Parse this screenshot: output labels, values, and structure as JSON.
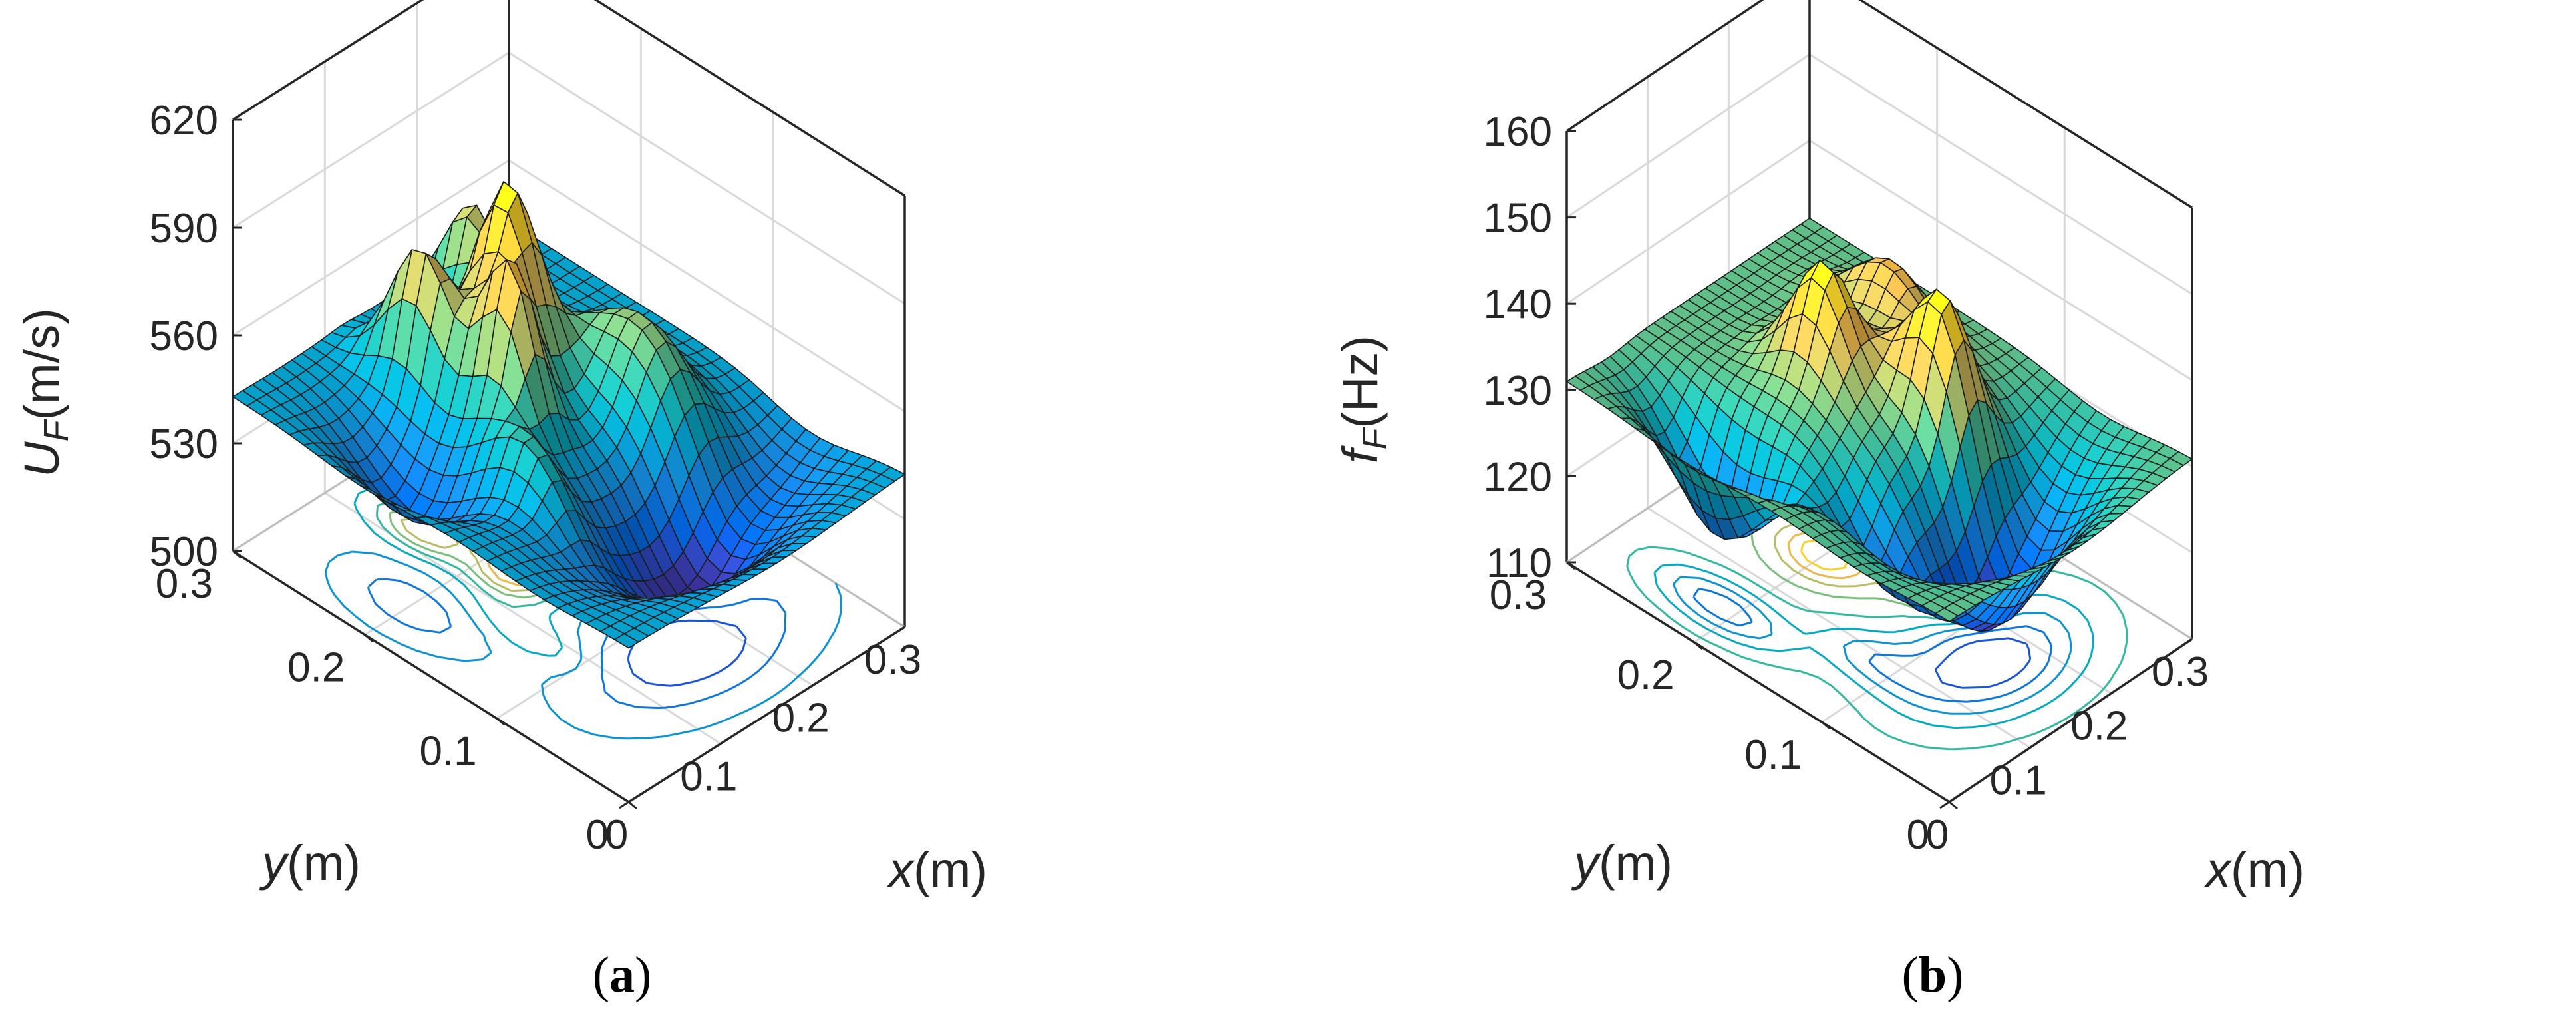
{
  "figure": {
    "panels": [
      {
        "id": "a",
        "caption_open": "(",
        "caption_letter": "a",
        "caption_close": ")"
      },
      {
        "id": "b",
        "caption_open": "(",
        "caption_letter": "b",
        "caption_close": ")"
      }
    ]
  },
  "chart_data": [
    {
      "type": "surface3d",
      "title": "",
      "zlabel_main": "U",
      "zlabel_sub": "F",
      "zlabel_unit": "(m/s)",
      "xlabel_var": "x",
      "xlabel_unit": "(m)",
      "ylabel_var": "y",
      "ylabel_unit": "(m)",
      "x_ticks": [
        "0",
        "0.1",
        "0.2",
        "0.3"
      ],
      "y_ticks": [
        "0",
        "0.1",
        "0.2",
        "0.3"
      ],
      "z_ticks": [
        "500",
        "530",
        "560",
        "590",
        "620"
      ],
      "xlim": [
        0,
        0.3
      ],
      "ylim": [
        0,
        0.3
      ],
      "zlim": [
        500,
        620
      ],
      "base_level": 543,
      "colormap": "parula",
      "contour_projection": true,
      "features": [
        {
          "kind": "peak",
          "x": 0.17,
          "y": 0.21,
          "z": 596
        },
        {
          "kind": "peak",
          "x": 0.12,
          "y": 0.24,
          "z": 578
        },
        {
          "kind": "peak",
          "x": 0.13,
          "y": 0.18,
          "z": 583
        },
        {
          "kind": "peak",
          "x": 0.2,
          "y": 0.26,
          "z": 572
        },
        {
          "kind": "valley",
          "x": 0.17,
          "y": 0.07,
          "z": 513
        },
        {
          "kind": "valley",
          "x": 0.05,
          "y": 0.2,
          "z": 525
        }
      ]
    },
    {
      "type": "surface3d",
      "title": "",
      "zlabel_main": "f",
      "zlabel_sub": "F",
      "zlabel_unit": "(Hz)",
      "xlabel_var": "x",
      "xlabel_unit": "(m)",
      "ylabel_var": "y",
      "ylabel_unit": "(m)",
      "x_ticks": [
        "0",
        "0.1",
        "0.2",
        "0.3"
      ],
      "y_ticks": [
        "0",
        "0.1",
        "0.2",
        "0.3"
      ],
      "z_ticks": [
        "110",
        "120",
        "130",
        "140",
        "150",
        "160"
      ],
      "xlim": [
        0,
        0.3
      ],
      "ylim": [
        0,
        0.3
      ],
      "zlim": [
        110,
        160
      ],
      "base_level": 131,
      "colormap": "parula",
      "contour_projection": true,
      "features": [
        {
          "kind": "peak",
          "x": 0.16,
          "y": 0.2,
          "z": 142
        },
        {
          "kind": "peak",
          "x": 0.2,
          "y": 0.13,
          "z": 144
        },
        {
          "kind": "valley",
          "x": 0.16,
          "y": 0.07,
          "z": 114
        },
        {
          "kind": "valley",
          "x": 0.05,
          "y": 0.21,
          "z": 118
        }
      ]
    }
  ]
}
